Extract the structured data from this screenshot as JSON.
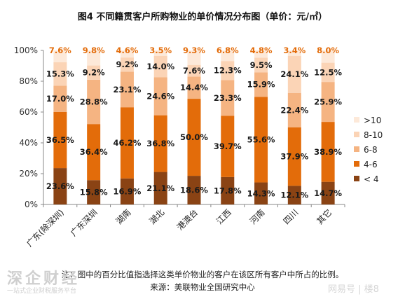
{
  "chart_data": {
    "type": "bar",
    "stacked": true,
    "title": "图4 不同籍贯客户所购物业的单价情况分布图（单价：元/㎡）",
    "categories": [
      "广东(除深圳)",
      "广东深圳",
      "湖南",
      "湖北",
      "港澳台",
      "江西",
      "河南",
      "四川",
      "其它"
    ],
    "series": [
      {
        "name": "< 4",
        "color": "#8a4314",
        "values": [
          23.6,
          15.8,
          16.9,
          21.1,
          18.6,
          17.8,
          14.3,
          12.1,
          14.7
        ]
      },
      {
        "name": "4-6",
        "color": "#e36c0a",
        "values": [
          36.5,
          36.4,
          46.2,
          36.8,
          50.0,
          39.7,
          55.6,
          37.9,
          38.9
        ]
      },
      {
        "name": "6-8",
        "color": "#f5b482",
        "values": [
          17.0,
          28.8,
          23.1,
          24.6,
          14.4,
          23.3,
          15.9,
          22.4,
          25.9
        ]
      },
      {
        "name": "8-10",
        "color": "#fbd4b6",
        "values": [
          15.3,
          9.2,
          9.2,
          14.0,
          7.6,
          12.3,
          9.5,
          24.1,
          12.5
        ]
      },
      {
        "name": ">10",
        "color": "#fde9d9",
        "values": [
          7.6,
          9.8,
          4.6,
          3.5,
          9.3,
          6.8,
          4.8,
          3.4,
          8.0
        ]
      }
    ],
    "labels": [
      [
        "23.6%",
        "15.8%",
        "16.9%",
        "21.1%",
        "18.6%",
        "17.8%",
        "14.3%",
        "12.1%",
        "14.7%"
      ],
      [
        "36.5%",
        "36.4%",
        "46.2%",
        "36.8%",
        "50.0%",
        "39.7%",
        "55.6%",
        "37.9%",
        "38.9%"
      ],
      [
        "17.0%",
        "28.8%",
        "23.1%",
        "24.6%",
        "14.4%",
        "23.3%",
        "15.9%",
        "22.4%",
        "25.9%"
      ],
      [
        "15.3%",
        "9.2%",
        "9.2%",
        "14.0%",
        "7.6%",
        "12.3%",
        "9.5%",
        "24.1%",
        "12.5%"
      ],
      [
        "7.6%",
        "9.8%",
        "4.6%",
        "3.5%",
        "9.3%",
        "6.8%",
        "4.8%",
        "3.4%",
        "8.0%"
      ]
    ],
    "top_label_color": "#e36c0a",
    "ylim": [
      0,
      100
    ],
    "yticks": [
      "0%",
      "20%",
      "40%",
      "60%",
      "80%",
      "100%"
    ],
    "legend_position": "right",
    "grid": false
  },
  "footer": {
    "note": "注：图中的百分比值指选择这类单价物业的客户在该区所有客户中所占的比例。",
    "source": "来源：美联物业全国研究中心"
  },
  "watermark": {
    "left_text": "深企财经",
    "left_subtext": "一站式企业财税服务平台",
    "right_text": "网易号 | 楼8"
  }
}
